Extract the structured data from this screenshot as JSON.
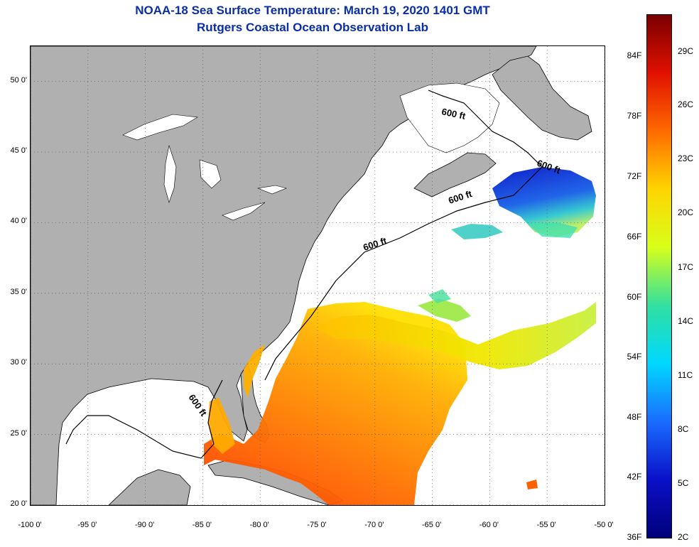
{
  "title": {
    "line1": "NOAA-18 Sea Surface Temperature:  March 19, 2020 1401 GMT",
    "line2": "Rutgers Coastal Ocean Observation Lab"
  },
  "map": {
    "lon_range": [
      -100,
      -50
    ],
    "lat_range": [
      20,
      52.5
    ],
    "lat_ticks": [
      {
        "value": 20,
        "label": "20 0'"
      },
      {
        "value": 25,
        "label": "25 0'"
      },
      {
        "value": 30,
        "label": "30 0'"
      },
      {
        "value": 35,
        "label": "35 0'"
      },
      {
        "value": 40,
        "label": "40 0'"
      },
      {
        "value": 45,
        "label": "45 0'"
      },
      {
        "value": 50,
        "label": "50 0'"
      }
    ],
    "lon_ticks": [
      {
        "value": -100,
        "label": "-100 0'"
      },
      {
        "value": -95,
        "label": "-95 0'"
      },
      {
        "value": -90,
        "label": "-90 0'"
      },
      {
        "value": -85,
        "label": "-85 0'"
      },
      {
        "value": -80,
        "label": "-80 0'"
      },
      {
        "value": -75,
        "label": "-75 0'"
      },
      {
        "value": -70,
        "label": "-70 0'"
      },
      {
        "value": -65,
        "label": "-65 0'"
      },
      {
        "value": -60,
        "label": "-60 0'"
      },
      {
        "value": -55,
        "label": "-55 0'"
      },
      {
        "value": -50,
        "label": "-50 0'"
      }
    ],
    "contour_labels": [
      "600 ft",
      "600 ft",
      "600 ft",
      "600 ft",
      "600 ft"
    ],
    "land_color": "#b0b0b0",
    "water_color": "#ffffff"
  },
  "colorbar": {
    "fahrenheit_labels": [
      "84F",
      "78F",
      "72F",
      "66F",
      "60F",
      "54F",
      "48F",
      "42F",
      "36F"
    ],
    "celsius_labels": [
      "29C",
      "26C",
      "23C",
      "20C",
      "17C",
      "14C",
      "11C",
      "8C",
      "5C",
      "2C"
    ],
    "stops": [
      "#7a0000",
      "#e01000",
      "#ff6a00",
      "#ffd400",
      "#d8ff1a",
      "#30e0a0",
      "#00d8ff",
      "#1a6cff",
      "#0a10c8",
      "#00007a"
    ]
  }
}
